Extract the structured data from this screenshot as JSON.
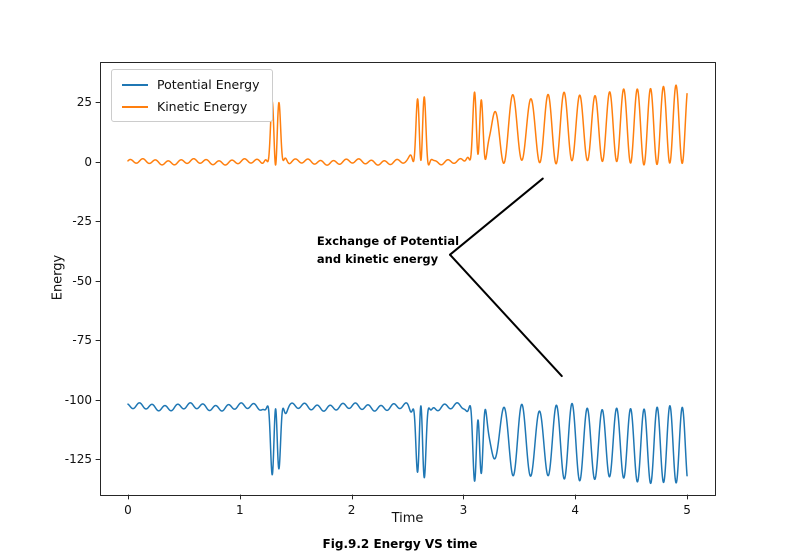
{
  "page": {
    "caption": "Fig.9.2 Energy VS time"
  },
  "chart_data": {
    "type": "line",
    "title": "",
    "xlabel": "Time",
    "ylabel": "Energy",
    "caption": "Fig.9.2 Energy VS time",
    "xlim": [
      -0.25,
      5.25
    ],
    "ylim": [
      -140,
      42
    ],
    "xticks": [
      0,
      1,
      2,
      3,
      4,
      5
    ],
    "yticks": [
      25,
      0,
      -25,
      -50,
      -75,
      -100,
      -125
    ],
    "grid": false,
    "legend": {
      "position": "upper-left",
      "entries": [
        {
          "label": "Potential Energy",
          "color": "#1f77b4"
        },
        {
          "label": "Kinetic Energy",
          "color": "#ff7f0e"
        }
      ]
    },
    "annotation": {
      "text_lines": [
        "Exchange of Potential",
        "and kinetic energy"
      ],
      "text_x": 1.69,
      "text_y": -30,
      "lines": [
        [
          [
            2.88,
            -39
          ],
          [
            3.71,
            -7
          ]
        ],
        [
          [
            2.88,
            -39
          ],
          [
            3.88,
            -90
          ]
        ]
      ]
    },
    "series": [
      {
        "name": "Potential Energy",
        "color": "#1f77b4",
        "baseline": -103,
        "summary": "Ripples near -103; sharp double dips to about -128 at t=1.3 and t=2.6, smaller double dip near t=3.1, then sustained oscillations between about -100 and -135 with increasing frequency from t=3.3 to t=5."
      },
      {
        "name": "Kinetic Energy",
        "color": "#ff7f0e",
        "baseline": 0,
        "summary": "Ripples near 0; sharp double spikes to about 25 at t=1.3 and 27 at t=2.6, spikes near t=3.1, then sustained oscillations from 0 up to about 27-31 with increasing frequency from t=3.3 to t=5."
      }
    ],
    "generator": {
      "t_start": 0,
      "t_end": 5,
      "sample_dt": 0.002,
      "ripple": {
        "a1": 0.9,
        "f1": 8.8,
        "p1": 0.5,
        "a2": 0.45,
        "f2": 2.1
      },
      "bursts": [
        {
          "c": 1.32,
          "w": 0.055,
          "a": 36,
          "fb": 7.2
        },
        {
          "c": 2.62,
          "w": 0.055,
          "a": 38,
          "fb": 7.2
        },
        {
          "c": 3.13,
          "w": 0.06,
          "a": 34,
          "fb": 7.2
        }
      ],
      "sustained": {
        "t0": 3.02,
        "t1": 3.38,
        "tref": 3.0,
        "a0": 27,
        "slope": 2.6,
        "f1": 2.6,
        "f2": 4.6,
        "T": 2.0
      },
      "kinetic": {
        "baseline": 0
      },
      "potential": {
        "baseline": -103,
        "ripple_scale": 1.3,
        "mirror": 1.05
      }
    },
    "curve_linewidth": 1.5,
    "annotation_linewidth": 2,
    "axis_color": "#262626"
  }
}
